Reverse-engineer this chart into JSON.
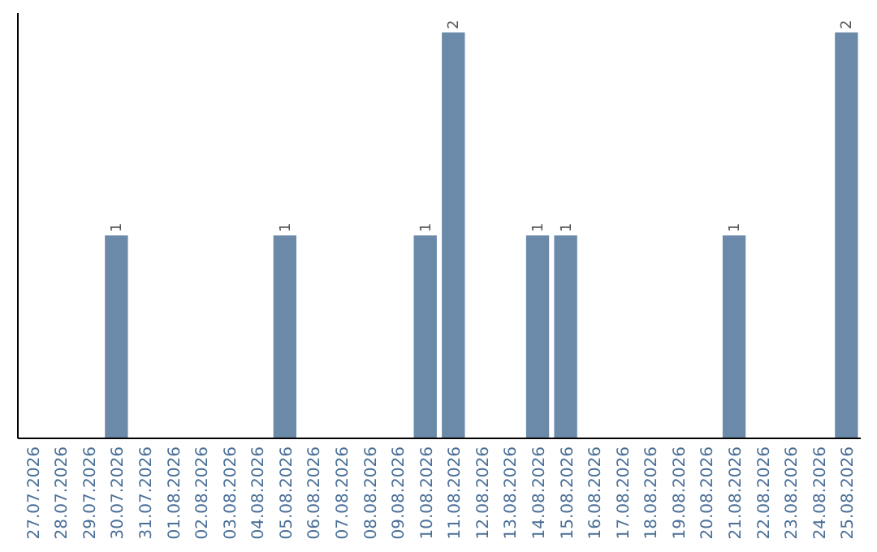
{
  "chart_data": {
    "type": "bar",
    "categories": [
      "27.07.2026",
      "28.07.2026",
      "29.07.2026",
      "30.07.2026",
      "31.07.2026",
      "01.08.2026",
      "02.08.2026",
      "03.08.2026",
      "04.08.2026",
      "05.08.2026",
      "06.08.2026",
      "07.08.2026",
      "08.08.2026",
      "09.08.2026",
      "10.08.2026",
      "11.08.2026",
      "12.08.2026",
      "13.08.2026",
      "14.08.2026",
      "15.08.2026",
      "16.08.2026",
      "17.08.2026",
      "18.08.2026",
      "19.08.2026",
      "20.08.2026",
      "21.08.2026",
      "22.08.2026",
      "23.08.2026",
      "24.08.2026",
      "25.08.2026"
    ],
    "values": [
      0,
      0,
      0,
      1,
      0,
      0,
      0,
      0,
      0,
      1,
      0,
      0,
      0,
      0,
      1,
      2,
      0,
      0,
      1,
      1,
      0,
      0,
      0,
      0,
      0,
      1,
      0,
      0,
      0,
      2
    ],
    "value_labels": [
      null,
      null,
      null,
      "1",
      null,
      null,
      null,
      null,
      null,
      "1",
      null,
      null,
      null,
      null,
      "1",
      "2",
      null,
      null,
      "1",
      "1",
      null,
      null,
      null,
      null,
      null,
      "1",
      null,
      null,
      null,
      "2"
    ],
    "color": "#6b8aa9"
  }
}
